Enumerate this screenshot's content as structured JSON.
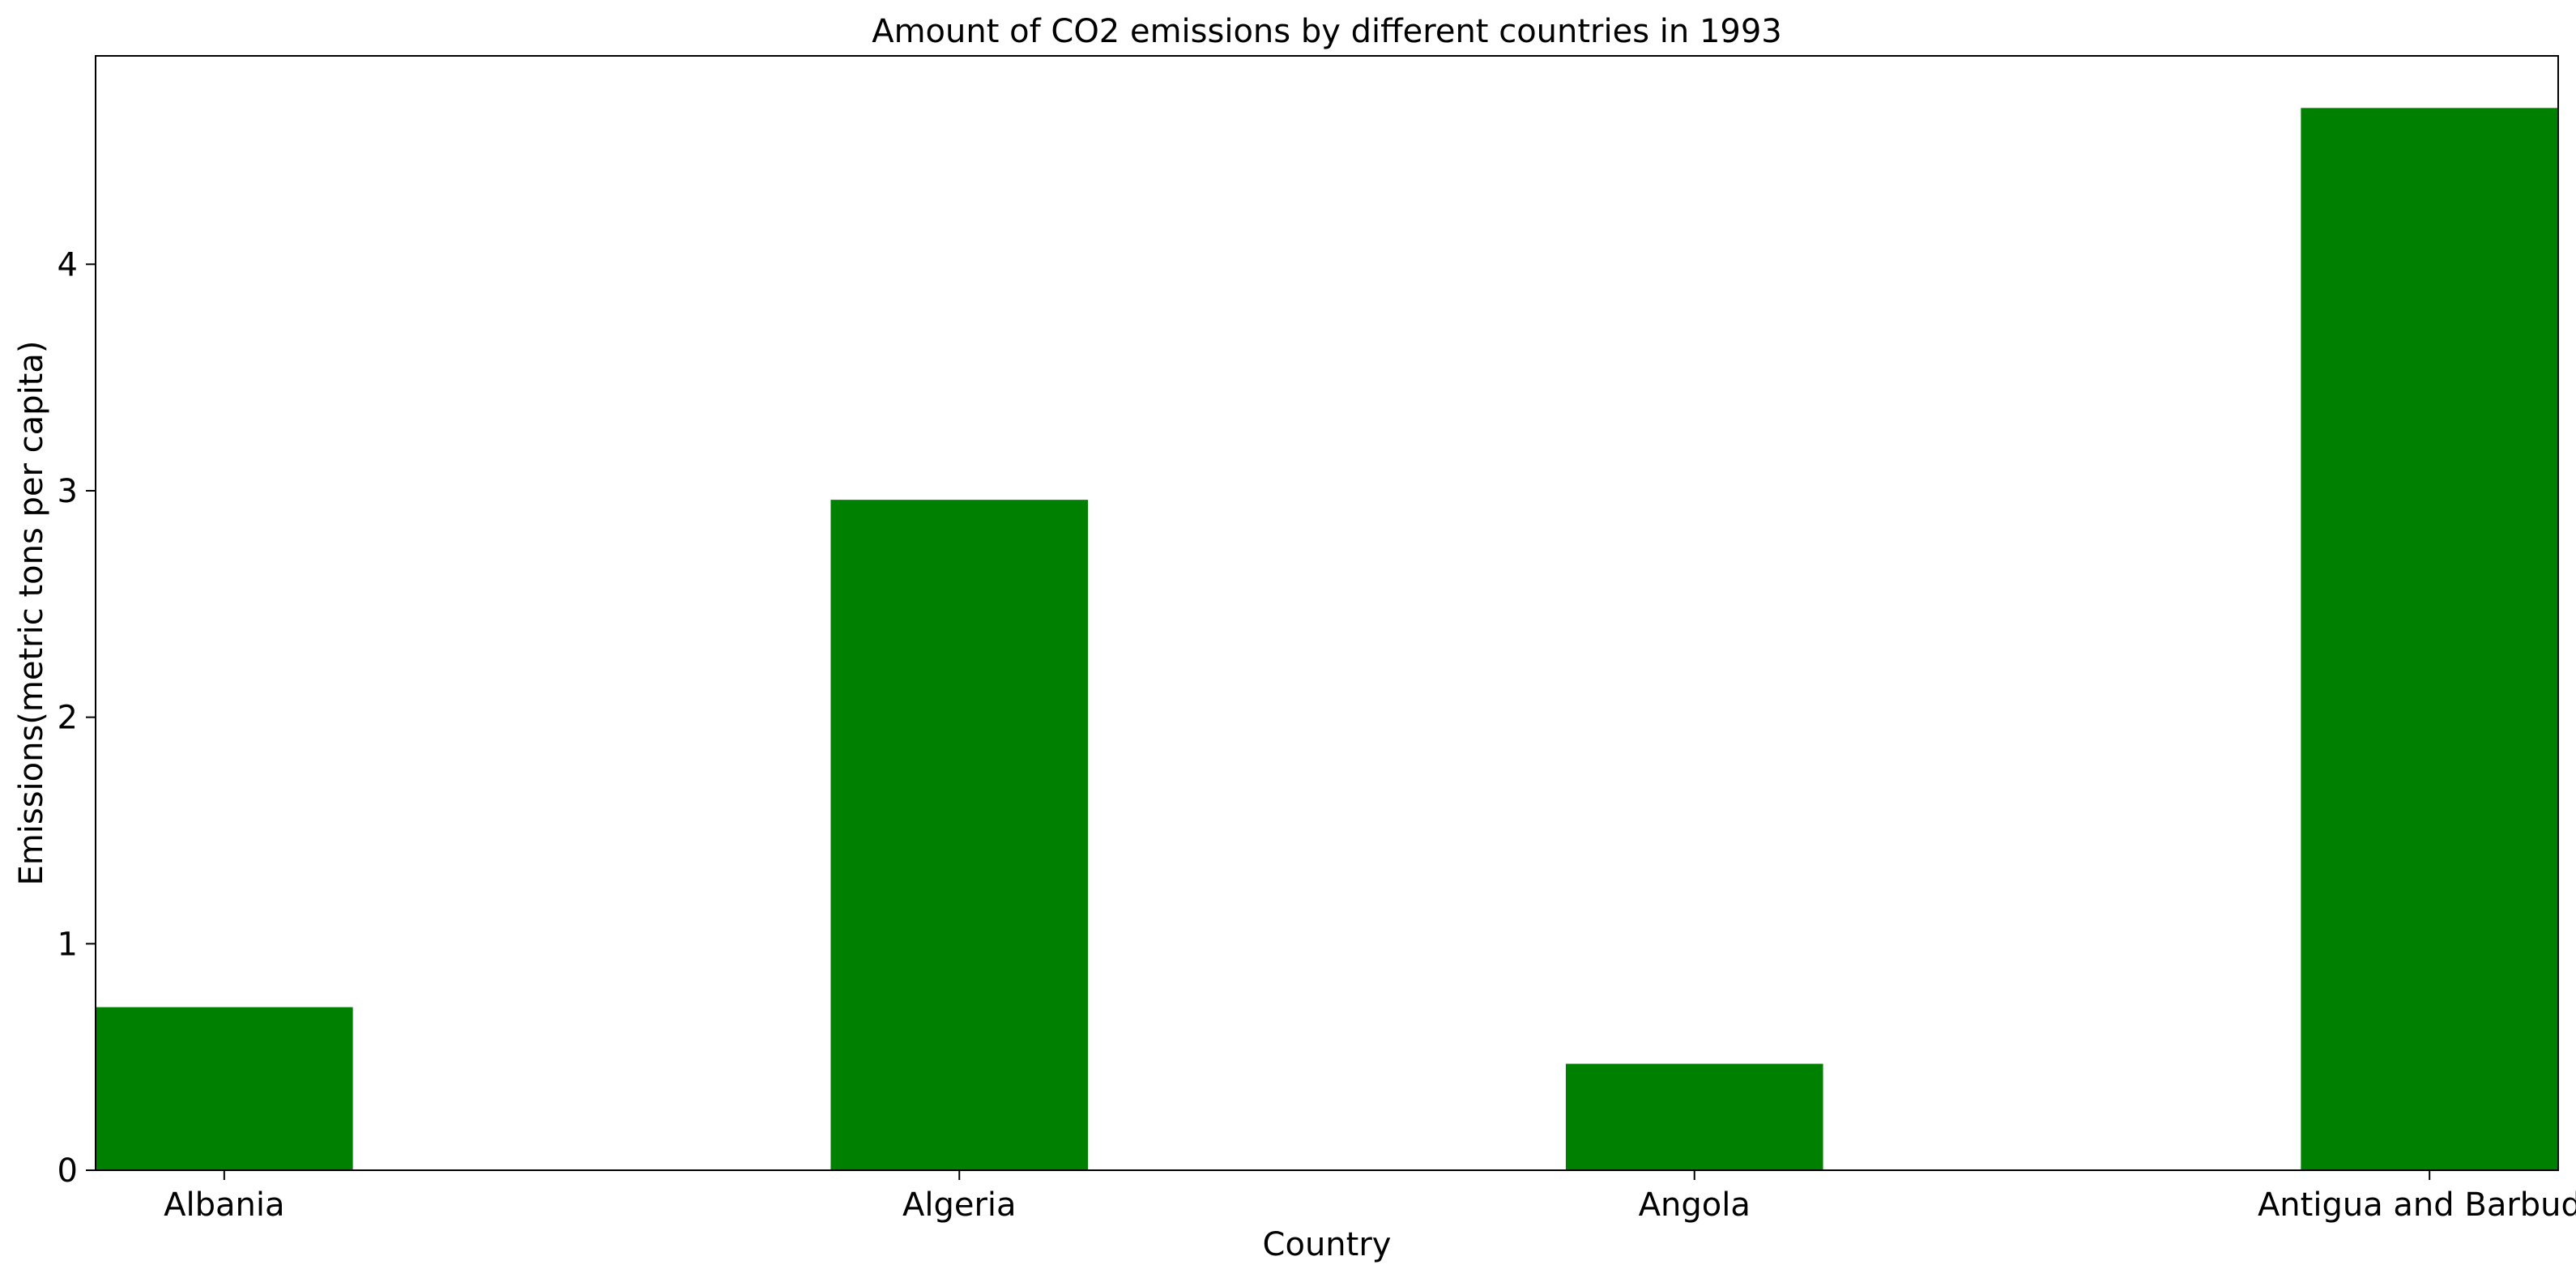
{
  "chart_data": {
    "type": "bar",
    "title": "Amount of CO2 emissions by different countries in 1993",
    "xlabel": "Country",
    "ylabel": "Emissions(metric tons per capita)",
    "categories": [
      "Albania",
      "Algeria",
      "Angola",
      "Antigua and Barbuda"
    ],
    "values": [
      0.72,
      2.96,
      0.47,
      4.69
    ],
    "ylim": [
      0,
      4.92
    ],
    "yticks": [
      0,
      1,
      2,
      3,
      4
    ],
    "ytick_labels": [
      "0",
      "1",
      "2",
      "3",
      "4"
    ],
    "bar_color": "#008000",
    "grid": false,
    "legend": "none"
  }
}
